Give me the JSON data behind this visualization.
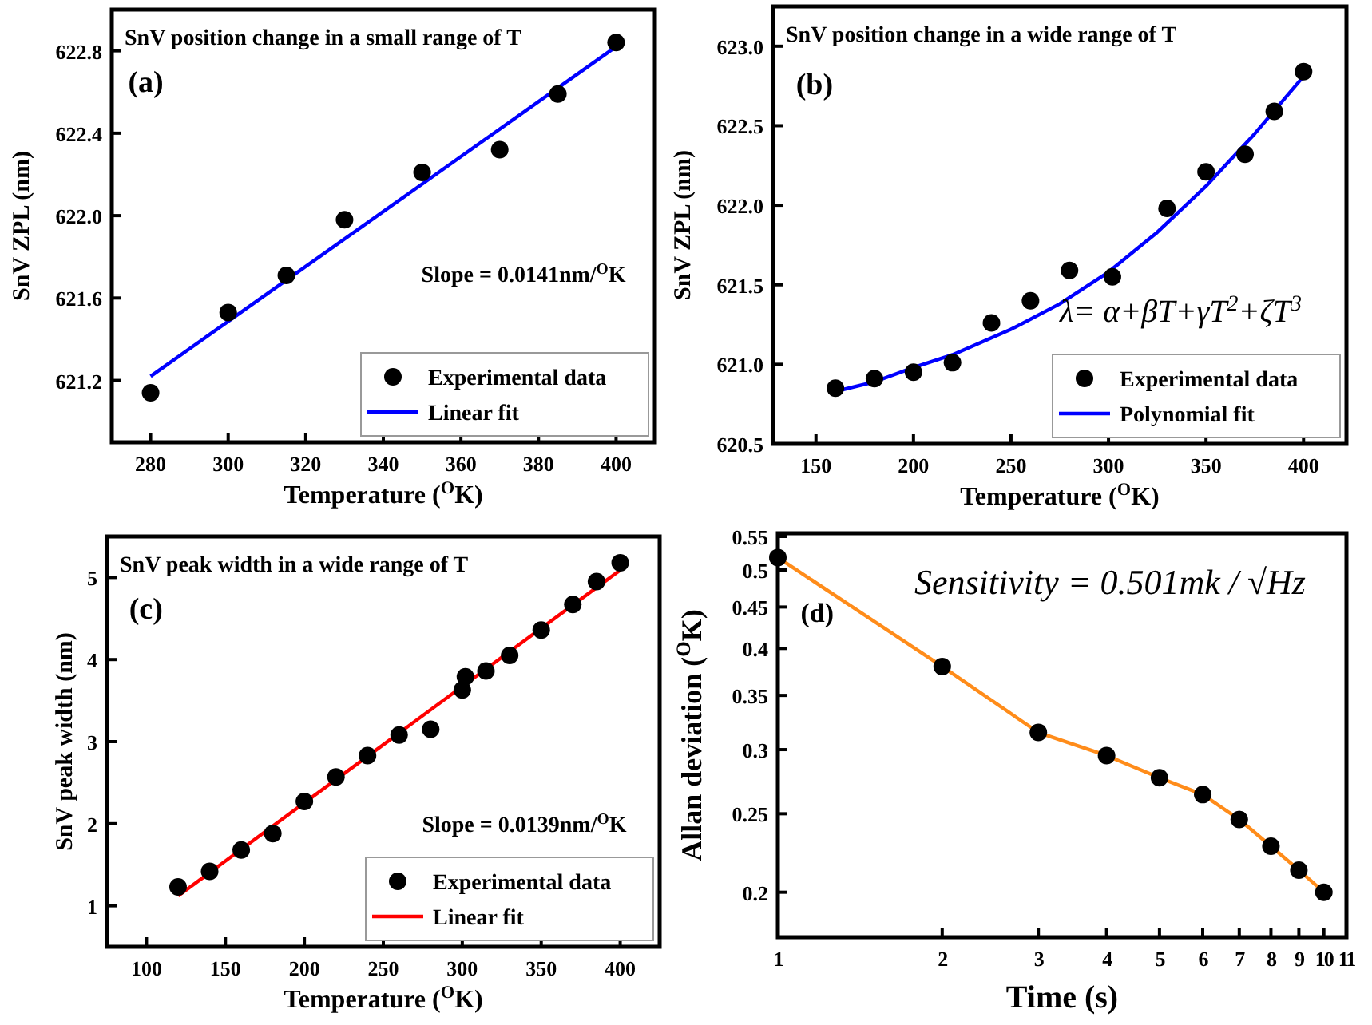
{
  "chart_data": [
    {
      "type": "scatter",
      "title": "SnV position change in a small range of T",
      "xlabel": "Temperature ($^{O}$K)",
      "ylabel": "SnV ZPL (nm)",
      "xlim": [
        270,
        410
      ],
      "xticks": [
        280,
        300,
        320,
        340,
        360,
        380,
        400
      ],
      "ylim": [
        620.9,
        623.0
      ],
      "yticks": [
        621.2,
        621.6,
        {
          "value": 622.0,
          "label": "622.0"
        },
        622.4,
        622.8
      ],
      "legend": "bottom right",
      "annotations": [
        "(a)",
        "Slope = 0.0141nm/$^{O}$K"
      ],
      "series": [
        {
          "name": "Experimental data",
          "color": "#000000",
          "x": [
            280,
            300,
            315,
            330,
            350,
            370,
            385,
            400
          ],
          "values": [
            621.14,
            621.53,
            621.71,
            621.98,
            622.21,
            622.32,
            622.59,
            622.84
          ]
        },
        {
          "name": "Linear fit",
          "type": "line",
          "color": "#0000ff",
          "x": [
            280,
            400
          ],
          "values": [
            621.22,
            622.82
          ]
        }
      ]
    },
    {
      "type": "scatter",
      "title": "SnV position change in a wide range of T",
      "xlabel": "Temperature ($^{O}$K)",
      "ylabel": "SnV ZPL (nm)",
      "xlim": [
        128,
        422
      ],
      "xticks": [
        150,
        200,
        250,
        300,
        350,
        400
      ],
      "ylim": [
        620.5,
        623.25
      ],
      "yticks": [
        620.5,
        {
          "value": 621.0,
          "label": "621.0"
        },
        621.5,
        {
          "value": 622.0,
          "label": "622.0"
        },
        622.5,
        {
          "value": 623.0,
          "label": "623.0"
        }
      ],
      "legend": "bottom right",
      "annotations": [
        "(b)",
        "λ= α+βT+γT$^{2}$+ζT$^{3}$"
      ],
      "series": [
        {
          "name": "Experimental data",
          "color": "#000000",
          "x": [
            160,
            180,
            200,
            220,
            240,
            260,
            280,
            302,
            330,
            350,
            370,
            385,
            400
          ],
          "values": [
            620.85,
            620.91,
            620.95,
            621.01,
            621.26,
            621.4,
            621.59,
            621.55,
            621.98,
            622.21,
            622.32,
            622.59,
            622.84
          ]
        },
        {
          "name": "Polynomial fit",
          "type": "line",
          "color": "#0000ff",
          "x": [
            160,
            180,
            200,
            220,
            250,
            275,
            300,
            325,
            350,
            375,
            400
          ],
          "values": [
            620.83,
            620.89,
            620.98,
            621.06,
            621.22,
            621.38,
            621.58,
            621.83,
            622.12,
            622.45,
            622.81
          ]
        }
      ]
    },
    {
      "type": "scatter",
      "title": "SnV peak width in a wide range of T",
      "xlabel": "Temperature ($^{O}$K)",
      "ylabel": "SnV peak width (nm)",
      "xlim": [
        75,
        425
      ],
      "xticks": [
        100,
        150,
        200,
        250,
        300,
        350,
        400
      ],
      "ylim": [
        0.5,
        5.5
      ],
      "yticks": [
        1,
        2,
        3,
        4,
        5
      ],
      "legend": "bottom right",
      "annotations": [
        "(c)",
        "Slope = 0.0139nm/$^{O}$K"
      ],
      "series": [
        {
          "name": "Experimental data",
          "color": "#000000",
          "x": [
            120,
            140,
            160,
            180,
            200,
            220,
            240,
            260,
            280,
            300,
            302,
            315,
            330,
            350,
            370,
            385,
            400
          ],
          "values": [
            1.23,
            1.42,
            1.68,
            1.88,
            2.27,
            2.57,
            2.83,
            3.08,
            3.15,
            3.63,
            3.79,
            3.86,
            4.05,
            4.36,
            4.67,
            4.95,
            5.18
          ]
        },
        {
          "name": "Linear fit",
          "type": "line",
          "color": "#ff0000",
          "x": [
            120,
            400
          ],
          "values": [
            1.12,
            5.09
          ]
        }
      ]
    },
    {
      "type": "line",
      "xlabel": "Time (s)",
      "ylabel": "Allan deviation ($^{O}$K)",
      "log": "xy",
      "xlim": [
        1,
        11
      ],
      "xticks": [
        1,
        2,
        3,
        4,
        5,
        6,
        7,
        8,
        9,
        10,
        11
      ],
      "ylim": [
        0.176,
        0.555
      ],
      "yticks": [
        0.2,
        0.25,
        0.3,
        0.35,
        0.4,
        0.45,
        0.5,
        0.55
      ],
      "annotations": [
        "(d)",
        "Sensitivity = 0.501mk / √Hz"
      ],
      "series": [
        {
          "color": "#ff8c1a",
          "x": [
            1,
            2,
            3,
            4,
            5,
            6,
            7,
            8,
            9,
            10
          ],
          "values": [
            0.518,
            0.38,
            0.315,
            0.295,
            0.277,
            0.264,
            0.246,
            0.228,
            0.213,
            0.2
          ]
        },
        {
          "type": "scatter",
          "color": "#000000",
          "x": [
            1,
            2,
            3,
            4,
            5,
            6,
            7,
            8,
            9,
            10
          ],
          "values": [
            0.518,
            0.38,
            0.315,
            0.295,
            0.277,
            0.264,
            0.246,
            0.228,
            0.213,
            0.2
          ]
        }
      ]
    }
  ]
}
